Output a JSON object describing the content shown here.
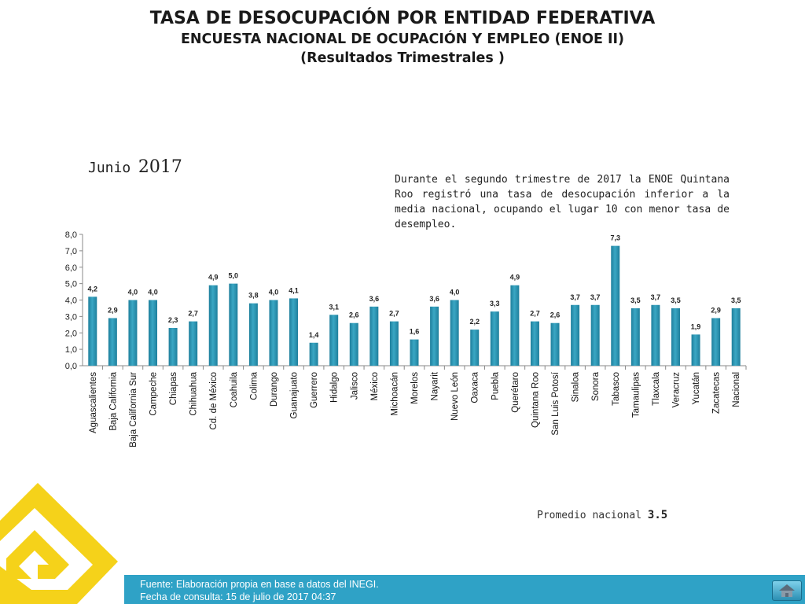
{
  "header": {
    "title": "TASA DE DESOCUPACIÓN POR ENTIDAD FEDERATIVA",
    "subtitle": "ENCUESTA NACIONAL DE OCUPACIÓN Y EMPLEO (ENOE II)",
    "subtitle2": "(Resultados Trimestrales  )"
  },
  "period": {
    "month": "Junio",
    "year": "2017"
  },
  "note": "Durante el segundo trimestre de 2017 la ENOE Quintana Roo registró una tasa de desocupación inferior a la media nacional, ocupando el lugar 10 con menor tasa de desempleo.",
  "average": {
    "label": "Promedio nacional",
    "value": "3.5"
  },
  "footer": {
    "source": "Fuente: Elaboración propia en base a datos del INEGI.",
    "date": "Fecha de consulta: 15 de julio de 2017 04:37"
  },
  "colors": {
    "bar": "#3aa7c4",
    "bar_dark": "#1f7f9c",
    "footer": "#2fa2c6",
    "logo": "#f5d21a"
  },
  "chart_data": {
    "type": "bar",
    "title": "",
    "xlabel": "",
    "ylabel": "",
    "ylim": [
      0,
      8
    ],
    "y_ticks": [
      "0,0",
      "1,0",
      "2,0",
      "3,0",
      "4,0",
      "5,0",
      "6,0",
      "7,0",
      "8,0"
    ],
    "grid": false,
    "categories": [
      "Aguascalientes",
      "Baja California",
      "Baja California Sur",
      "Campeche",
      "Chiapas",
      "Chihuahua",
      "Cd. de México",
      "Coahuila",
      "Colima",
      "Durango",
      "Guanajuato",
      "Guerrero",
      "Hidalgo",
      "Jalisco",
      "México",
      "Michoacán",
      "Morelos",
      "Nayarit",
      "Nuevo León",
      "Oaxaca",
      "Puebla",
      "Querétaro",
      "Quintana Roo",
      "San Luis Potosí",
      "Sinaloa",
      "Sonora",
      "Tabasco",
      "Tamaulipas",
      "Tlaxcala",
      "Veracruz",
      "Yucatán",
      "Zacatecas",
      "Nacional"
    ],
    "values": [
      4.2,
      2.9,
      4.0,
      4.0,
      2.3,
      2.7,
      4.9,
      5.0,
      3.8,
      4.0,
      4.1,
      1.4,
      3.1,
      2.6,
      3.6,
      2.7,
      1.6,
      3.6,
      4.0,
      2.2,
      3.3,
      4.9,
      2.7,
      2.6,
      3.7,
      3.7,
      7.3,
      3.5,
      3.7,
      3.5,
      1.9,
      2.9,
      3.5
    ],
    "value_labels": [
      "4,2",
      "2,9",
      "4,0",
      "4,0",
      "2,3",
      "2,7",
      "4,9",
      "5,0",
      "3,8",
      "4,0",
      "4,1",
      "1,4",
      "3,1",
      "2,6",
      "3,6",
      "2,7",
      "1,6",
      "3,6",
      "4,0",
      "2,2",
      "3,3",
      "4,9",
      "2,7",
      "2,6",
      "3,7",
      "3,7",
      "7,3",
      "3,5",
      "3,7",
      "3,5",
      "1,9",
      "2,9",
      "3,5"
    ]
  }
}
